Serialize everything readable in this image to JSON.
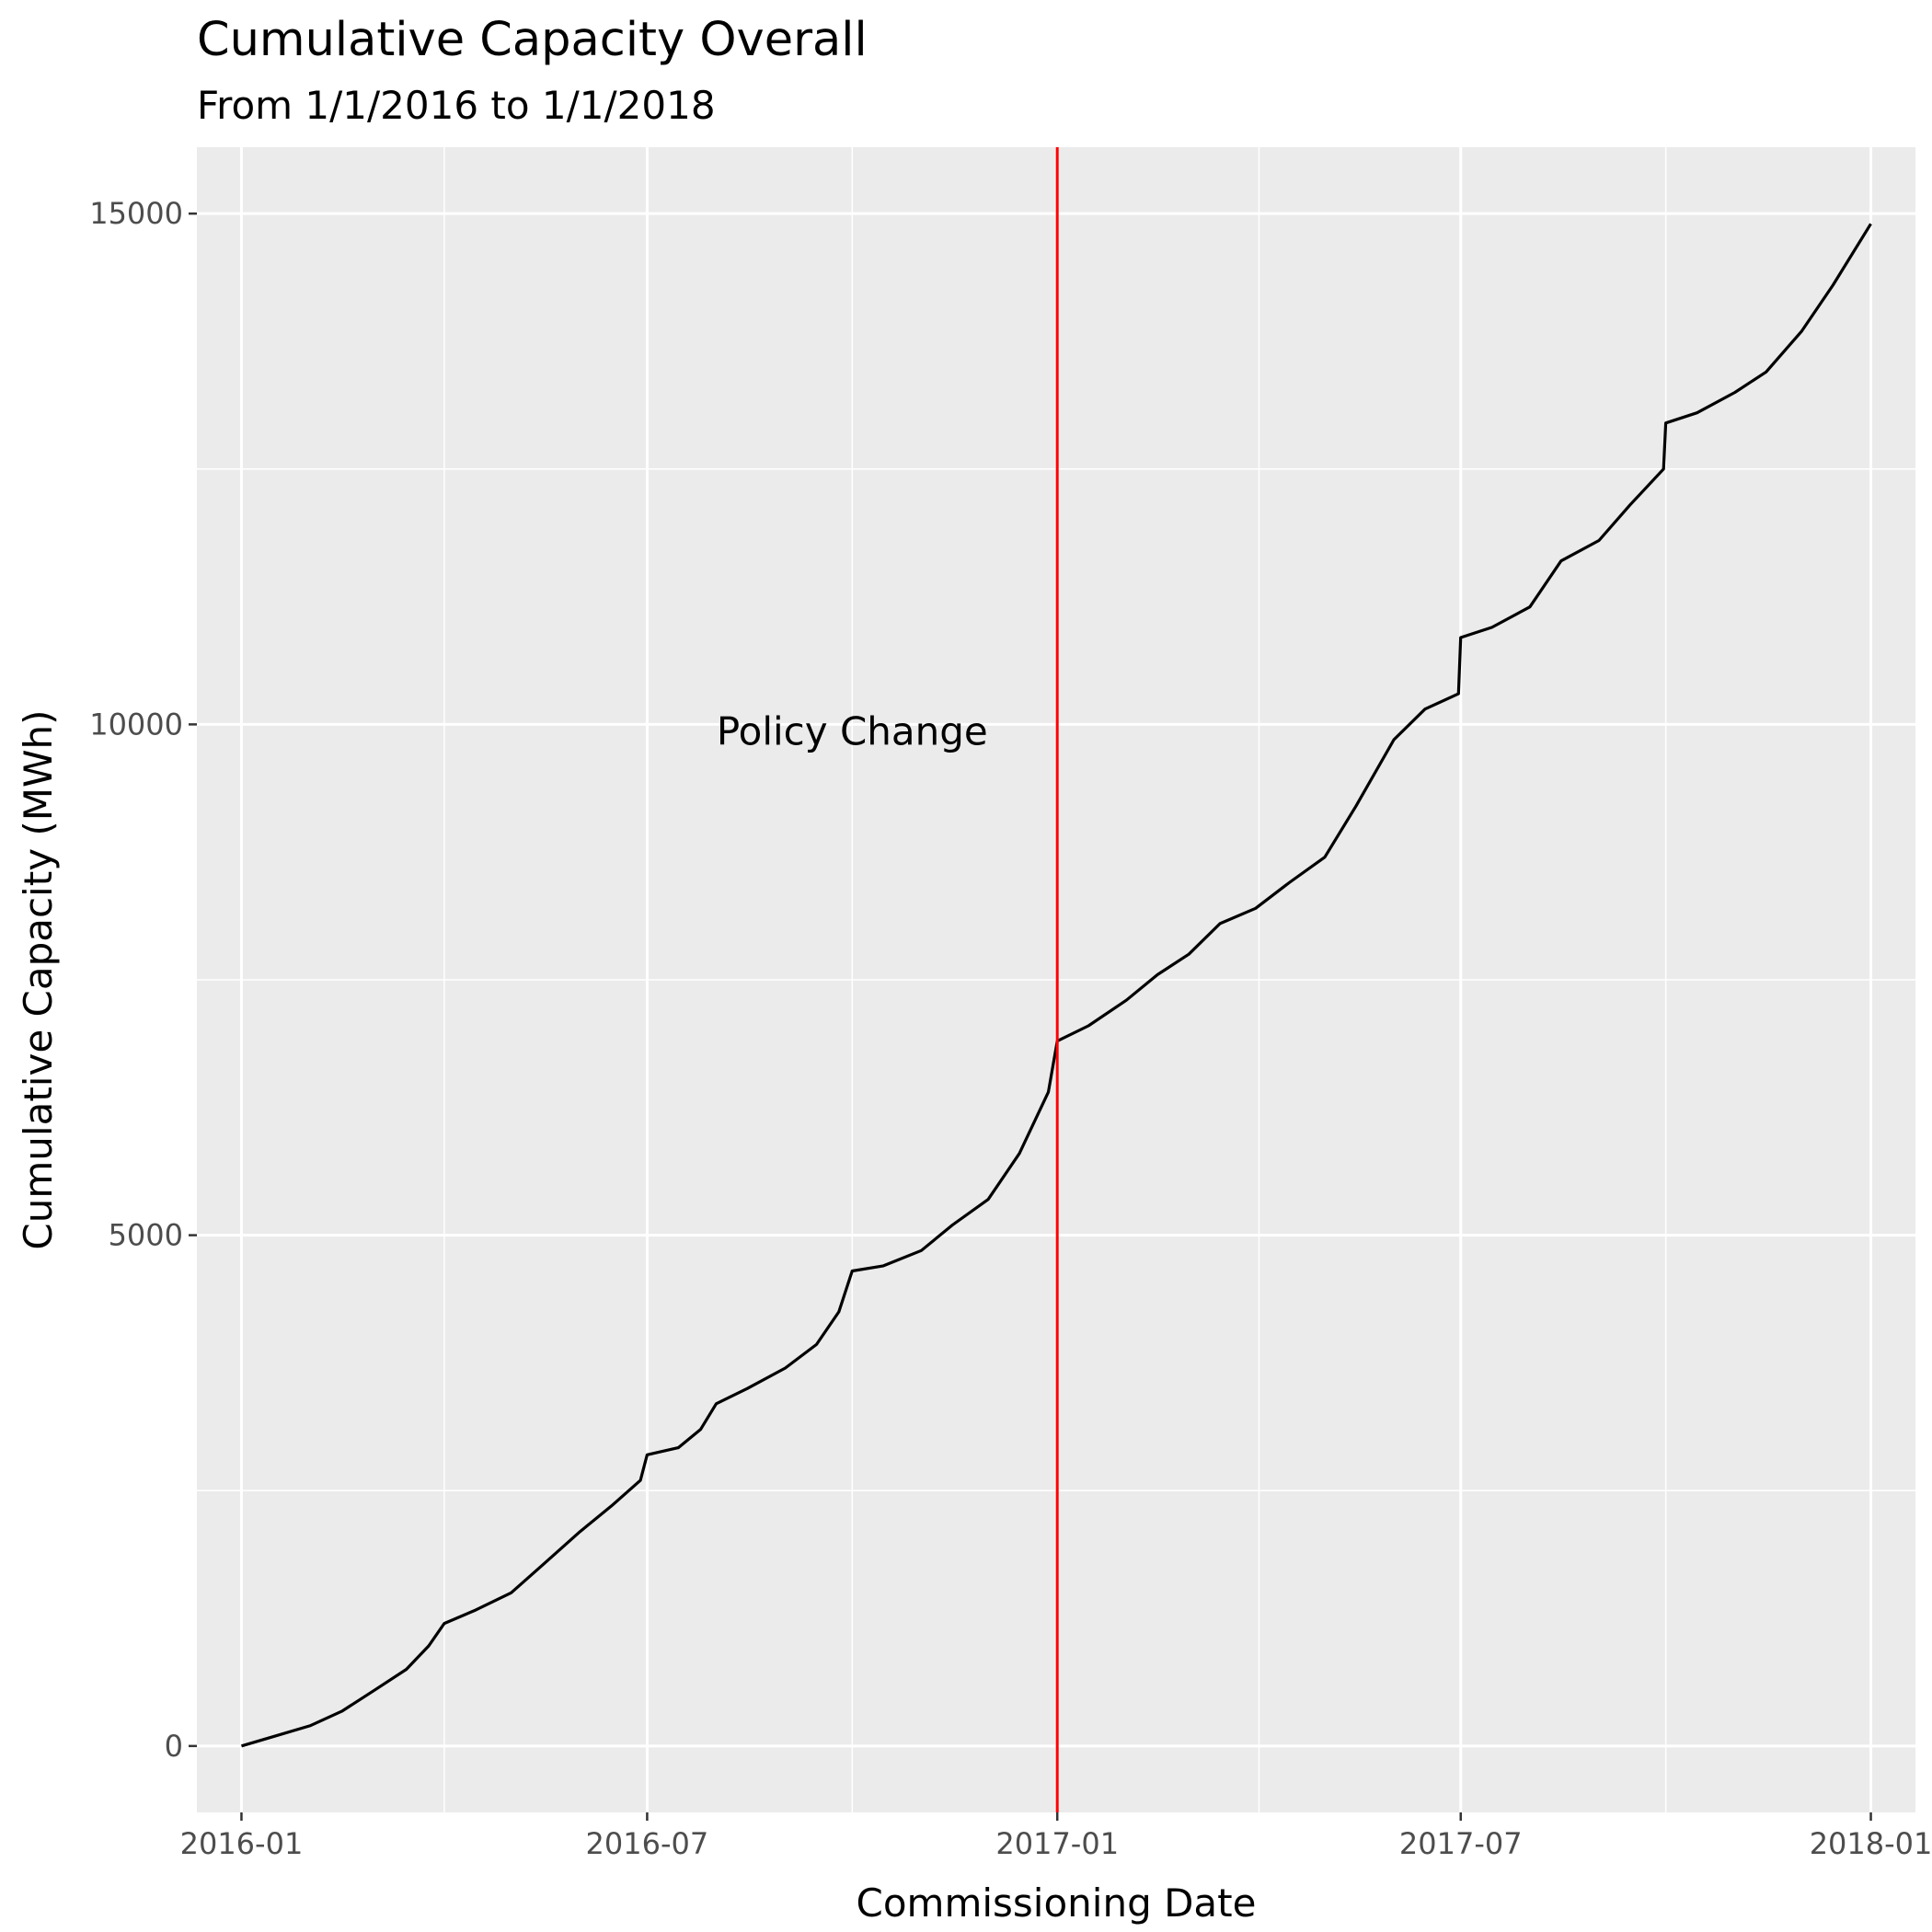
{
  "chart_data": {
    "type": "line",
    "title": "Cumulative Capacity Overall",
    "subtitle": "From 1/1/2016 to 1/1/2018",
    "xlabel": "Commissioning Date",
    "ylabel": "Cumulative Capacity (MWh)",
    "xlim": [
      "2015-12-12",
      "2018-01-21"
    ],
    "ylim": [
      -650,
      15650
    ],
    "x_ticks": [
      "2016-01-01",
      "2016-07-01",
      "2017-01-01",
      "2017-07-01",
      "2018-01-01"
    ],
    "x_tick_labels": [
      "2016-01",
      "2016-07",
      "2017-01",
      "2017-07",
      "2018-01"
    ],
    "y_ticks": [
      0,
      5000,
      10000,
      15000
    ],
    "y_tick_labels": [
      "0",
      "5000",
      "10000",
      "15000"
    ],
    "grid": true,
    "series": [
      {
        "color": "#000000",
        "x": [
          "2016-01-01",
          "2016-01-15",
          "2016-02-01",
          "2016-02-15",
          "2016-03-01",
          "2016-03-15",
          "2016-03-25",
          "2016-04-01",
          "2016-04-15",
          "2016-05-01",
          "2016-05-15",
          "2016-06-01",
          "2016-06-15",
          "2016-06-28",
          "2016-07-01",
          "2016-07-15",
          "2016-07-25",
          "2016-08-01",
          "2016-08-15",
          "2016-09-01",
          "2016-09-15",
          "2016-09-25",
          "2016-10-01",
          "2016-10-15",
          "2016-11-01",
          "2016-11-15",
          "2016-12-01",
          "2016-12-15",
          "2016-12-28",
          "2017-01-01",
          "2017-01-15",
          "2017-02-01",
          "2017-02-15",
          "2017-03-01",
          "2017-03-15",
          "2017-03-31",
          "2017-04-15",
          "2017-05-01",
          "2017-05-15",
          "2017-06-01",
          "2017-06-15",
          "2017-06-30",
          "2017-07-01",
          "2017-07-15",
          "2017-08-01",
          "2017-08-15",
          "2017-09-01",
          "2017-09-15",
          "2017-09-30",
          "2017-10-01",
          "2017-10-15",
          "2017-11-01",
          "2017-11-15",
          "2017-12-01",
          "2017-12-15",
          "2018-01-01"
        ],
        "values": [
          0,
          90,
          200,
          340,
          550,
          750,
          980,
          1200,
          1330,
          1500,
          1770,
          2100,
          2350,
          2600,
          2850,
          2920,
          3100,
          3350,
          3500,
          3700,
          3930,
          4250,
          4650,
          4700,
          4850,
          5100,
          5350,
          5800,
          6400,
          6900,
          7050,
          7300,
          7550,
          7750,
          8050,
          8200,
          8450,
          8700,
          9200,
          9850,
          10150,
          10300,
          10850,
          10950,
          11150,
          11600,
          11800,
          12150,
          12500,
          12950,
          13050,
          13250,
          13450,
          13850,
          14300,
          14900
        ]
      }
    ],
    "annotations": [
      {
        "type": "vline",
        "x": "2017-01-01",
        "color": "#ff0000"
      },
      {
        "type": "text",
        "text": "Policy Change",
        "x": "2016-10-01",
        "y": 9800
      }
    ]
  }
}
